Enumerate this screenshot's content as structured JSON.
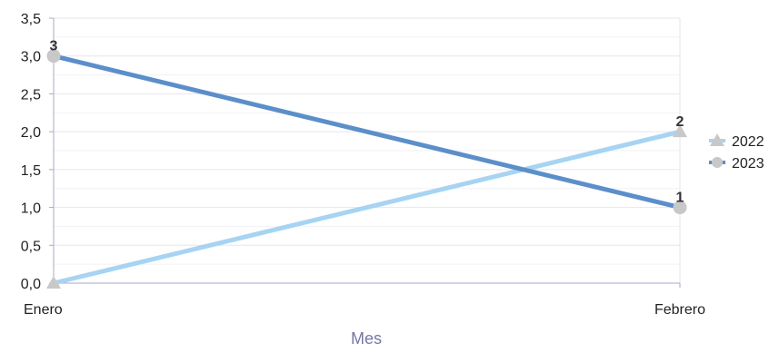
{
  "chart_data": {
    "type": "line",
    "xlabel": "Mes",
    "categories": [
      "Enero",
      "Febrero"
    ],
    "ylim": [
      0,
      3.5
    ],
    "yticks": [
      "0,0",
      "0,5",
      "1,0",
      "1,5",
      "2,0",
      "2,5",
      "3,0",
      "3,5"
    ],
    "grid": true,
    "legend_position": "right",
    "series": [
      {
        "name": "2022",
        "values": [
          0,
          2
        ],
        "data_labels": [
          "",
          "2"
        ],
        "color": "#a6d4f2",
        "marker": "triangle"
      },
      {
        "name": "2023",
        "values": [
          3,
          1
        ],
        "data_labels": [
          "3",
          "1"
        ],
        "color": "#5b8fc9",
        "marker": "circle"
      }
    ],
    "marker_color": "#c8c8c8"
  }
}
